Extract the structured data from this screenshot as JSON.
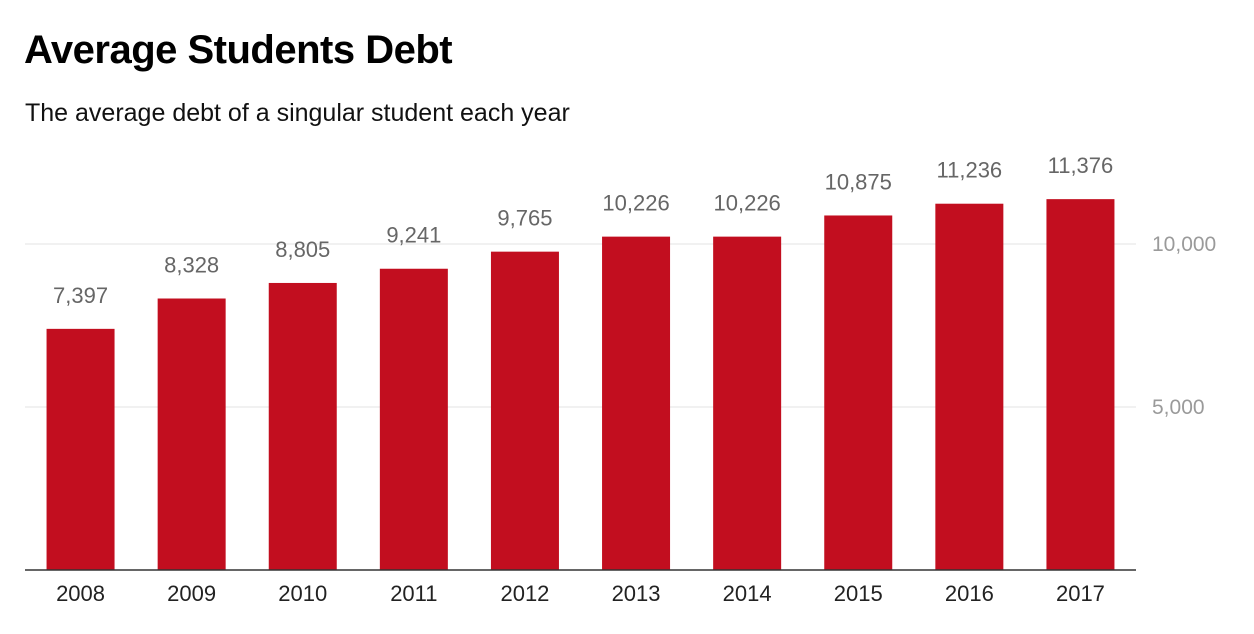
{
  "chart_data": {
    "type": "bar",
    "title": "Average Students Debt",
    "subtitle": "The average debt of a singular student each year",
    "xlabel": "",
    "ylabel": "",
    "categories": [
      "2008",
      "2009",
      "2010",
      "2011",
      "2012",
      "2013",
      "2014",
      "2015",
      "2016",
      "2017"
    ],
    "values": [
      7397,
      8328,
      8805,
      9241,
      9765,
      10226,
      10226,
      10875,
      11236,
      11376
    ],
    "value_labels": [
      "7,397",
      "8,328",
      "8,805",
      "9,241",
      "9,765",
      "10,226",
      "10,226",
      "10,875",
      "11,236",
      "11,376"
    ],
    "y_ticks": [
      5000,
      10000
    ],
    "y_tick_labels": [
      "5,000",
      "10,000"
    ],
    "ylim": [
      0,
      12000
    ],
    "y_axis_side": "right",
    "grid": true,
    "legend": "none",
    "bar_color": "#c20e1f"
  }
}
